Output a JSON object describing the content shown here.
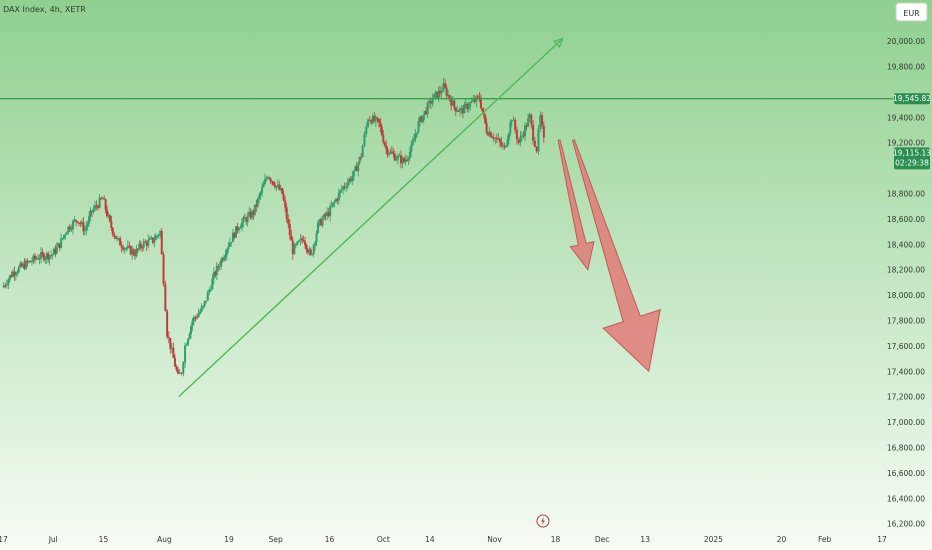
{
  "header": {
    "symbol_label": "DAX Index, 4h, XETR",
    "currency_button": "EUR"
  },
  "colors": {
    "background_top": "#8fd08f",
    "background_bottom": "#f7fcf5",
    "up_candle": "#2f9e6a",
    "down_candle": "#c23b3b",
    "trendline": "#4fb858",
    "horizontal_level": "#3d9a4a",
    "arrow_fill": "#e07b78",
    "arrow_stroke": "#c55854",
    "price_badge_bg": "#2c8f52",
    "axis_text": "#2f3b2f"
  },
  "badges": {
    "level_price": "19,545.82",
    "current_price": "19,115.13",
    "countdown": "02:29:38"
  },
  "chart_data": {
    "type": "candlestick",
    "title": "",
    "ylim": [
      16150,
      20150
    ],
    "ytick_values": [
      16200,
      16400,
      16600,
      16800,
      17000,
      17200,
      17400,
      17600,
      17800,
      18000,
      18200,
      18400,
      18600,
      18800,
      19200,
      19400,
      19800,
      20000
    ],
    "ytick_labels": [
      "16,200.00",
      "16,400.00",
      "16,600.00",
      "16,800.00",
      "17,000.00",
      "17,200.00",
      "17,400.00",
      "17,600.00",
      "17,800.00",
      "18,000.00",
      "18,200.00",
      "18,400.00",
      "18,600.00",
      "18,800.00",
      "19,200.00",
      "19,400.00",
      "19,800.00",
      "20,000.00"
    ],
    "xtick_labels": [
      "17",
      "Jul",
      "15",
      "Aug",
      "19",
      "Sep",
      "16",
      "Oct",
      "14",
      "Nov",
      "18",
      "Dec",
      "13",
      "2025",
      "20",
      "Feb",
      "17"
    ],
    "horizontal_level": 19545.82,
    "current_price": 19115.13,
    "close_path": [
      [
        "2024-06-17",
        18060
      ],
      [
        "2024-06-20",
        18180
      ],
      [
        "2024-06-24",
        18250
      ],
      [
        "2024-06-27",
        18300
      ],
      [
        "2024-07-01",
        18320
      ],
      [
        "2024-07-03",
        18400
      ],
      [
        "2024-07-05",
        18520
      ],
      [
        "2024-07-08",
        18600
      ],
      [
        "2024-07-10",
        18510
      ],
      [
        "2024-07-12",
        18660
      ],
      [
        "2024-07-15",
        18760
      ],
      [
        "2024-07-17",
        18560
      ],
      [
        "2024-07-19",
        18430
      ],
      [
        "2024-07-22",
        18360
      ],
      [
        "2024-07-24",
        18330
      ],
      [
        "2024-07-26",
        18400
      ],
      [
        "2024-07-29",
        18430
      ],
      [
        "2024-07-31",
        18500
      ],
      [
        "2024-08-01",
        18120
      ],
      [
        "2024-08-02",
        17700
      ],
      [
        "2024-08-05",
        17350
      ],
      [
        "2024-08-06",
        17400
      ],
      [
        "2024-08-07",
        17600
      ],
      [
        "2024-08-09",
        17800
      ],
      [
        "2024-08-12",
        17900
      ],
      [
        "2024-08-15",
        18150
      ],
      [
        "2024-08-19",
        18400
      ],
      [
        "2024-08-22",
        18550
      ],
      [
        "2024-08-26",
        18650
      ],
      [
        "2024-08-28",
        18800
      ],
      [
        "2024-08-30",
        18950
      ],
      [
        "2024-09-03",
        18800
      ],
      [
        "2024-09-06",
        18350
      ],
      [
        "2024-09-09",
        18450
      ],
      [
        "2024-09-11",
        18300
      ],
      [
        "2024-09-13",
        18550
      ],
      [
        "2024-09-16",
        18650
      ],
      [
        "2024-09-18",
        18750
      ],
      [
        "2024-09-20",
        18850
      ],
      [
        "2024-09-23",
        18950
      ],
      [
        "2024-09-25",
        19100
      ],
      [
        "2024-09-26",
        19250
      ],
      [
        "2024-09-27",
        19400
      ],
      [
        "2024-09-30",
        19350
      ],
      [
        "2024-10-02",
        19150
      ],
      [
        "2024-10-04",
        19100
      ],
      [
        "2024-10-07",
        19050
      ],
      [
        "2024-10-09",
        19150
      ],
      [
        "2024-10-11",
        19350
      ],
      [
        "2024-10-14",
        19500
      ],
      [
        "2024-10-15",
        19550
      ],
      [
        "2024-10-17",
        19600
      ],
      [
        "2024-10-18",
        19640
      ],
      [
        "2024-10-21",
        19480
      ],
      [
        "2024-10-23",
        19450
      ],
      [
        "2024-10-25",
        19500
      ],
      [
        "2024-10-28",
        19550
      ],
      [
        "2024-10-30",
        19300
      ],
      [
        "2024-11-01",
        19250
      ],
      [
        "2024-11-04",
        19150
      ],
      [
        "2024-11-06",
        19400
      ],
      [
        "2024-11-07",
        19300
      ],
      [
        "2024-11-08",
        19200
      ],
      [
        "2024-11-11",
        19400
      ],
      [
        "2024-11-12",
        19250
      ],
      [
        "2024-11-13",
        19150
      ],
      [
        "2024-11-14",
        19400
      ],
      [
        "2024-11-15",
        19210
      ]
    ],
    "annotations": {
      "trendline": {
        "from": [
          "2024-08-05",
          17200
        ],
        "to": [
          "2024-11-20",
          20020
        ]
      },
      "arrows": [
        {
          "from": [
            "2024-11-19",
            19220
          ],
          "to": [
            "2024-11-27",
            18200
          ]
        },
        {
          "from": [
            "2024-11-23",
            19220
          ],
          "to": [
            "2024-12-14",
            17400
          ]
        }
      ]
    }
  }
}
